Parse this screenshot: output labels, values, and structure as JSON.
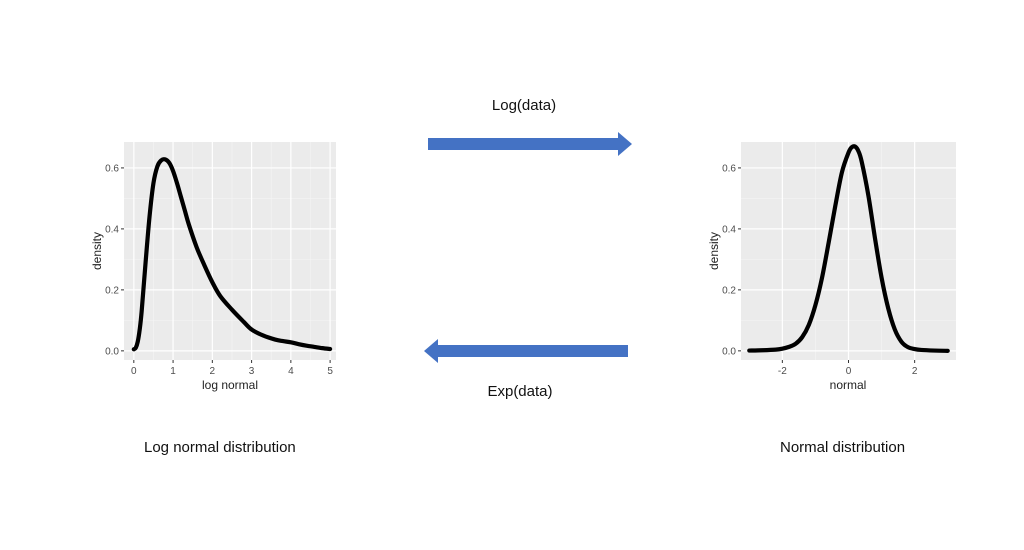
{
  "arrows": {
    "top_label": "Log(data)",
    "bottom_label": "Exp(data)",
    "color": "#4472C4"
  },
  "captions": {
    "left": "Log normal distribution",
    "right": "Normal distribution"
  },
  "chart_data": [
    {
      "type": "line",
      "xlabel": "log normal",
      "ylabel": "density",
      "xlim": [
        -0.25,
        5.15
      ],
      "ylim": [
        -0.03,
        0.685
      ],
      "xticks": [
        0,
        1,
        2,
        3,
        4,
        5
      ],
      "xtick_labels": [
        "0",
        "1",
        "2",
        "3",
        "4",
        "5"
      ],
      "yticks": [
        0.0,
        0.2,
        0.4,
        0.6
      ],
      "ytick_labels": [
        "0.0",
        "0.2",
        "0.4",
        "0.6"
      ],
      "grid": true,
      "panel_color": "#EBEBEB",
      "line_color": "#000000",
      "series": [
        {
          "x": [
            0.0,
            0.05,
            0.1,
            0.15,
            0.2,
            0.3,
            0.4,
            0.5,
            0.6,
            0.7,
            0.8,
            0.9,
            1.0,
            1.1,
            1.2,
            1.3,
            1.4,
            1.6,
            1.8,
            2.0,
            2.2,
            2.5,
            2.8,
            3.0,
            3.3,
            3.6,
            3.8,
            4.0,
            4.2,
            4.4,
            4.6,
            4.8,
            5.0
          ],
          "y": [
            0.005,
            0.01,
            0.03,
            0.07,
            0.13,
            0.29,
            0.44,
            0.55,
            0.605,
            0.625,
            0.628,
            0.617,
            0.59,
            0.55,
            0.505,
            0.46,
            0.415,
            0.34,
            0.28,
            0.225,
            0.18,
            0.135,
            0.095,
            0.07,
            0.05,
            0.037,
            0.032,
            0.028,
            0.022,
            0.017,
            0.013,
            0.009,
            0.006
          ]
        }
      ]
    },
    {
      "type": "line",
      "xlabel": "normal",
      "ylabel": "density",
      "xlim": [
        -3.25,
        3.25
      ],
      "ylim": [
        -0.03,
        0.685
      ],
      "xticks": [
        -2,
        0,
        2
      ],
      "xtick_labels": [
        "-2",
        "0",
        "2"
      ],
      "yticks": [
        0.0,
        0.2,
        0.4,
        0.6
      ],
      "ytick_labels": [
        "0.0",
        "0.2",
        "0.4",
        "0.6"
      ],
      "grid": true,
      "panel_color": "#EBEBEB",
      "line_color": "#000000",
      "series": [
        {
          "x": [
            -3.0,
            -2.6,
            -2.2,
            -2.0,
            -1.8,
            -1.6,
            -1.4,
            -1.2,
            -1.0,
            -0.8,
            -0.6,
            -0.4,
            -0.2,
            0.0,
            0.1,
            0.2,
            0.3,
            0.4,
            0.6,
            0.8,
            1.0,
            1.2,
            1.4,
            1.6,
            1.8,
            2.0,
            2.2,
            2.6,
            3.0
          ],
          "y": [
            0.001,
            0.002,
            0.004,
            0.007,
            0.013,
            0.023,
            0.045,
            0.085,
            0.15,
            0.24,
            0.355,
            0.475,
            0.585,
            0.65,
            0.668,
            0.67,
            0.655,
            0.62,
            0.51,
            0.37,
            0.24,
            0.14,
            0.07,
            0.03,
            0.012,
            0.006,
            0.003,
            0.001,
            0.0
          ]
        }
      ]
    }
  ]
}
